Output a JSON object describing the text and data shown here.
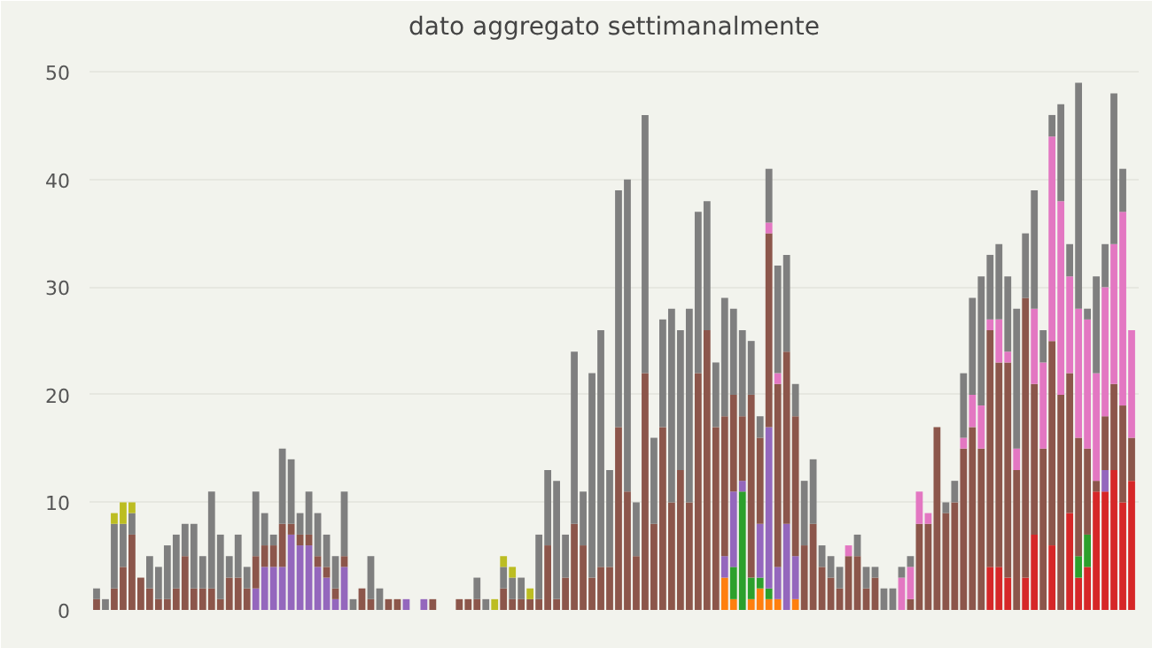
{
  "chart_data": {
    "type": "bar",
    "title": "dato aggregato settimanalmente",
    "stacked": true,
    "categories": [
      null,
      null,
      null,
      null,
      null,
      null,
      null,
      null,
      null,
      null,
      null,
      null,
      null,
      null,
      null,
      null,
      null,
      null,
      null,
      null,
      null,
      null,
      null,
      null,
      null,
      null,
      null,
      null,
      null,
      null,
      null,
      null,
      null,
      null,
      null,
      null,
      null,
      null,
      null,
      null,
      null,
      null,
      null,
      null,
      null,
      null,
      null,
      null,
      null,
      null,
      null,
      null,
      null,
      null,
      null,
      null,
      null,
      null,
      null,
      null,
      null,
      null,
      null,
      null,
      null,
      null,
      null,
      null,
      null,
      null,
      null,
      null,
      null,
      null,
      null,
      null,
      null,
      null,
      null,
      null,
      null,
      null,
      null,
      null,
      null,
      null,
      null,
      null,
      null,
      null,
      null,
      null,
      null,
      null,
      null,
      null,
      null,
      null,
      null,
      null,
      null,
      null,
      null,
      null,
      null,
      null,
      null,
      null,
      null,
      null,
      null,
      null,
      null,
      null,
      null,
      null,
      null,
      null
    ],
    "ylim": [
      0,
      52
    ],
    "yticks": [
      0,
      10,
      20,
      30,
      40,
      50
    ],
    "grid": "y",
    "series": [
      {
        "color": "#d62728",
        "values": [
          0,
          0,
          0,
          0,
          0,
          0,
          0,
          0,
          0,
          0,
          0,
          0,
          0,
          0,
          0,
          0,
          0,
          0,
          0,
          0,
          0,
          0,
          0,
          0,
          0,
          0,
          0,
          0,
          0,
          0,
          0,
          0,
          0,
          0,
          0,
          0,
          0,
          0,
          0,
          0,
          0,
          0,
          0,
          0,
          0,
          0,
          0,
          0,
          0,
          0,
          0,
          0,
          0,
          0,
          0,
          0,
          0,
          0,
          0,
          0,
          0,
          0,
          0,
          0,
          0,
          0,
          0,
          0,
          0,
          0,
          0,
          0,
          0,
          0,
          0,
          0,
          0,
          0,
          0,
          0,
          0,
          0,
          0,
          0,
          0,
          0,
          0,
          0,
          0,
          0,
          0,
          0,
          0,
          0,
          0,
          0,
          0,
          0,
          0,
          0,
          0,
          4,
          4,
          3,
          0,
          3,
          7,
          0,
          6,
          0,
          9,
          3,
          4,
          11,
          11,
          13,
          10,
          12
        ]
      },
      {
        "color": "#ff7f0e",
        "values": [
          0,
          0,
          0,
          0,
          0,
          0,
          0,
          0,
          0,
          0,
          0,
          0,
          0,
          0,
          0,
          0,
          0,
          0,
          0,
          0,
          0,
          0,
          0,
          0,
          0,
          0,
          0,
          0,
          0,
          0,
          0,
          0,
          0,
          0,
          0,
          0,
          0,
          0,
          0,
          0,
          0,
          0,
          0,
          0,
          0,
          0,
          0,
          0,
          0,
          0,
          0,
          0,
          0,
          0,
          0,
          0,
          0,
          0,
          0,
          0,
          0,
          0,
          0,
          0,
          0,
          0,
          0,
          0,
          0,
          0,
          0,
          3,
          1,
          0,
          1,
          2,
          1,
          1,
          0,
          1,
          0,
          0,
          0,
          0,
          0,
          0,
          0,
          0,
          0,
          0,
          0,
          0,
          0,
          0,
          0,
          0,
          0,
          0,
          0,
          0,
          0,
          0,
          0,
          0,
          0,
          0,
          0,
          0,
          0,
          0,
          0,
          0,
          0,
          0,
          0,
          0,
          0,
          0
        ]
      },
      {
        "color": "#2ca02c",
        "values": [
          0,
          0,
          0,
          0,
          0,
          0,
          0,
          0,
          0,
          0,
          0,
          0,
          0,
          0,
          0,
          0,
          0,
          0,
          0,
          0,
          0,
          0,
          0,
          0,
          0,
          0,
          0,
          0,
          0,
          0,
          0,
          0,
          0,
          0,
          0,
          0,
          0,
          0,
          0,
          0,
          0,
          0,
          0,
          0,
          0,
          0,
          0,
          0,
          0,
          0,
          0,
          0,
          0,
          0,
          0,
          0,
          0,
          0,
          0,
          0,
          0,
          0,
          0,
          0,
          0,
          0,
          0,
          0,
          0,
          0,
          0,
          0,
          3,
          11,
          2,
          1,
          1,
          0,
          0,
          0,
          0,
          0,
          0,
          0,
          0,
          0,
          0,
          0,
          0,
          0,
          0,
          0,
          0,
          0,
          0,
          0,
          0,
          0,
          0,
          0,
          0,
          0,
          0,
          0,
          0,
          0,
          0,
          0,
          0,
          0,
          0,
          2,
          3,
          0,
          0,
          0,
          0,
          0
        ]
      },
      {
        "color": "#9467bd",
        "values": [
          0,
          0,
          0,
          0,
          0,
          0,
          0,
          0,
          0,
          0,
          0,
          0,
          0,
          0,
          0,
          0,
          0,
          0,
          2,
          4,
          4,
          4,
          7,
          6,
          6,
          4,
          3,
          1,
          4,
          0,
          0,
          0,
          0,
          0,
          0,
          1,
          0,
          1,
          0,
          0,
          0,
          0,
          0,
          0,
          0,
          0,
          0,
          0,
          0,
          0,
          0,
          0,
          0,
          0,
          0,
          0,
          0,
          0,
          0,
          0,
          0,
          0,
          0,
          0,
          0,
          0,
          0,
          0,
          0,
          0,
          0,
          2,
          7,
          1,
          0,
          5,
          15,
          3,
          8,
          4,
          0,
          0,
          0,
          0,
          0,
          0,
          0,
          0,
          0,
          0,
          0,
          0,
          0,
          0,
          0,
          0,
          0,
          0,
          0,
          0,
          0,
          0,
          0,
          0,
          0,
          0,
          0,
          0,
          0,
          0,
          0,
          0,
          0,
          0,
          2,
          0,
          0,
          0
        ]
      },
      {
        "color": "#8c564b",
        "values": [
          1,
          0,
          2,
          4,
          7,
          3,
          2,
          1,
          1,
          2,
          5,
          2,
          2,
          2,
          1,
          3,
          3,
          2,
          3,
          2,
          2,
          4,
          1,
          1,
          1,
          1,
          1,
          1,
          1,
          0,
          2,
          1,
          0,
          1,
          1,
          0,
          0,
          0,
          1,
          0,
          0,
          1,
          1,
          1,
          0,
          0,
          2,
          1,
          1,
          1,
          1,
          6,
          1,
          3,
          8,
          6,
          3,
          4,
          4,
          17,
          11,
          5,
          22,
          8,
          17,
          10,
          13,
          10,
          22,
          26,
          17,
          13,
          9,
          6,
          17,
          8,
          18,
          17,
          16,
          13,
          6,
          8,
          4,
          3,
          2,
          5,
          5,
          2,
          3,
          0,
          0,
          0,
          1,
          8,
          8,
          17,
          9,
          10,
          15,
          17,
          15,
          22,
          19,
          20,
          13,
          26,
          14,
          15,
          19,
          20,
          13,
          11,
          8,
          1,
          5,
          8,
          9,
          4
        ]
      },
      {
        "color": "#e377c2",
        "values": [
          0,
          0,
          0,
          0,
          0,
          0,
          0,
          0,
          0,
          0,
          0,
          0,
          0,
          0,
          0,
          0,
          0,
          0,
          0,
          0,
          0,
          0,
          0,
          0,
          0,
          0,
          0,
          0,
          0,
          0,
          0,
          0,
          0,
          0,
          0,
          0,
          0,
          0,
          0,
          0,
          0,
          0,
          0,
          0,
          0,
          0,
          0,
          0,
          0,
          0,
          0,
          0,
          0,
          0,
          0,
          0,
          0,
          0,
          0,
          0,
          0,
          0,
          0,
          0,
          0,
          0,
          0,
          0,
          0,
          0,
          0,
          0,
          0,
          0,
          0,
          0,
          1,
          1,
          0,
          0,
          0,
          0,
          0,
          0,
          0,
          1,
          0,
          0,
          0,
          0,
          0,
          3,
          3,
          3,
          1,
          0,
          0,
          0,
          1,
          3,
          4,
          1,
          4,
          1,
          2,
          0,
          7,
          8,
          19,
          18,
          9,
          12,
          12,
          10,
          12,
          13,
          18,
          10
        ]
      },
      {
        "color": "#7f7f7f",
        "values": [
          1,
          1,
          6,
          4,
          2,
          0,
          3,
          3,
          5,
          5,
          3,
          6,
          3,
          9,
          6,
          2,
          4,
          2,
          6,
          3,
          1,
          7,
          6,
          2,
          4,
          4,
          3,
          3,
          6,
          1,
          0,
          4,
          2,
          0,
          0,
          0,
          0,
          0,
          0,
          0,
          0,
          0,
          0,
          2,
          1,
          0,
          2,
          2,
          2,
          0,
          6,
          7,
          11,
          4,
          16,
          5,
          19,
          22,
          9,
          22,
          29,
          5,
          24,
          8,
          10,
          18,
          13,
          18,
          15,
          12,
          6,
          11,
          8,
          8,
          5,
          2,
          5,
          10,
          9,
          3,
          6,
          6,
          2,
          2,
          2,
          0,
          2,
          2,
          1,
          2,
          2,
          1,
          1,
          0,
          0,
          0,
          1,
          2,
          6,
          9,
          12,
          6,
          7,
          7,
          13,
          6,
          11,
          3,
          2,
          9,
          3,
          21,
          1,
          9,
          4,
          14,
          4,
          0
        ]
      },
      {
        "color": "#bcbd22",
        "values": [
          0,
          0,
          1,
          2,
          1,
          0,
          0,
          0,
          0,
          0,
          0,
          0,
          0,
          0,
          0,
          0,
          0,
          0,
          0,
          0,
          0,
          0,
          0,
          0,
          0,
          0,
          0,
          0,
          0,
          0,
          0,
          0,
          0,
          0,
          0,
          0,
          0,
          0,
          0,
          0,
          0,
          0,
          0,
          0,
          0,
          1,
          1,
          1,
          0,
          1,
          0,
          0,
          0,
          0,
          0,
          0,
          0,
          0,
          0,
          0,
          0,
          0,
          0,
          0,
          0,
          0,
          0,
          0,
          0,
          0,
          0,
          0,
          0,
          0,
          0,
          0,
          0,
          0,
          0,
          0,
          0,
          0,
          0,
          0,
          0,
          0,
          0,
          0,
          0,
          0,
          0,
          0,
          0,
          0,
          0,
          0,
          0,
          0,
          0,
          0,
          0,
          0,
          0,
          0,
          0,
          0,
          0,
          0,
          0,
          0,
          0,
          0,
          0,
          0,
          0,
          0,
          0,
          0
        ]
      }
    ]
  }
}
